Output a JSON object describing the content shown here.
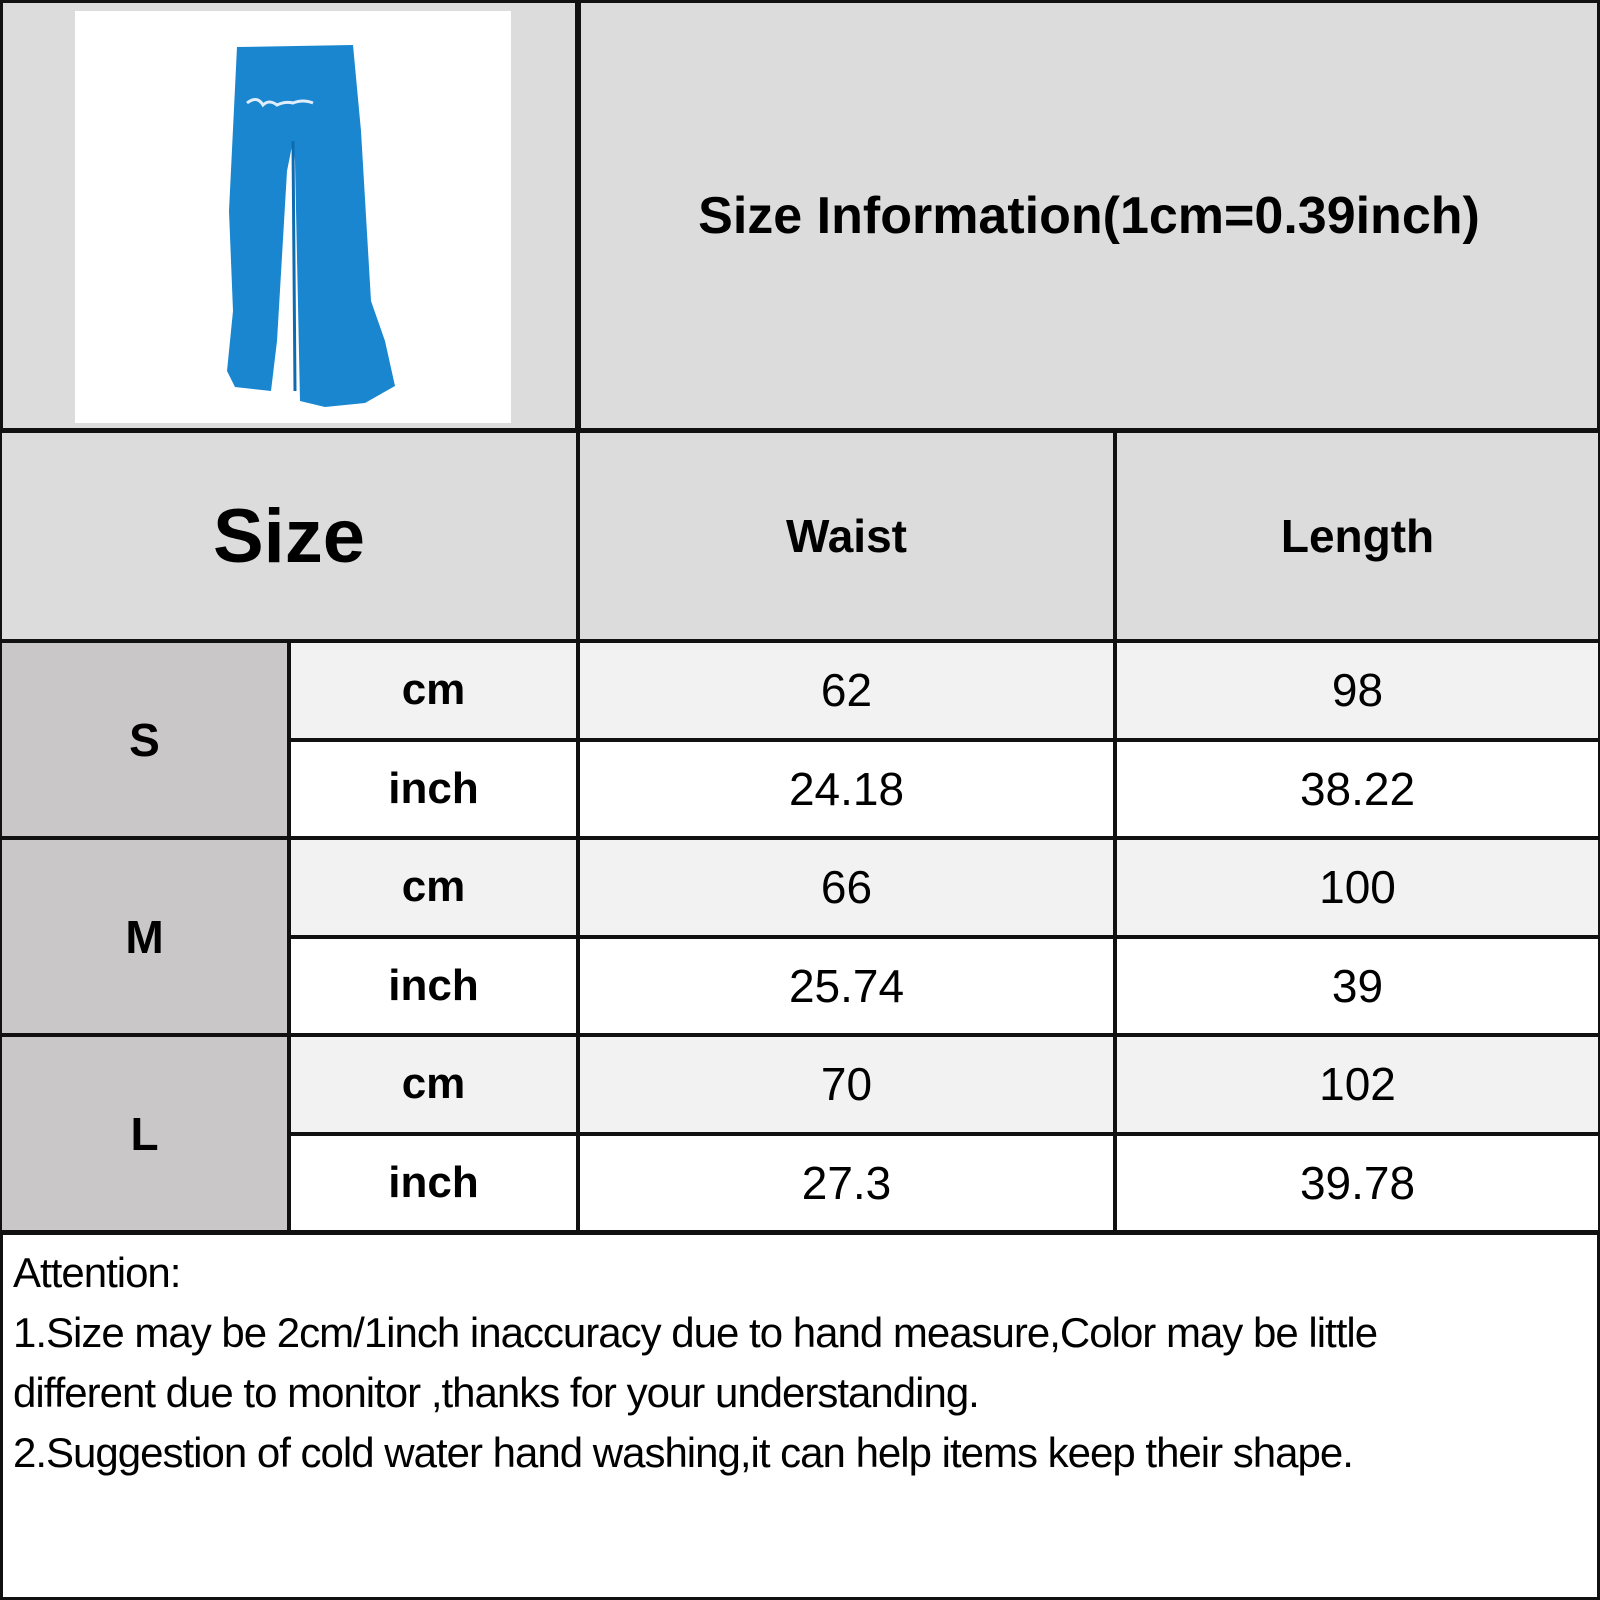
{
  "title": "Size Information(1cm=0.39inch)",
  "product_image": {
    "icon": "blue-wide-leg-pants",
    "color": "#1a86d0",
    "logo_text": "script logo"
  },
  "table": {
    "headers": {
      "size": "Size",
      "waist": "Waist",
      "length": "Length"
    },
    "rows": [
      {
        "size": "S",
        "cm": {
          "unit": "cm",
          "waist": "62",
          "length": "98"
        },
        "inch": {
          "unit": "inch",
          "waist": "24.18",
          "length": "38.22"
        }
      },
      {
        "size": "M",
        "cm": {
          "unit": "cm",
          "waist": "66",
          "length": "100"
        },
        "inch": {
          "unit": "inch",
          "waist": "25.74",
          "length": "39"
        }
      },
      {
        "size": "L",
        "cm": {
          "unit": "cm",
          "waist": "70",
          "length": "102"
        },
        "inch": {
          "unit": "inch",
          "waist": "27.3",
          "length": "39.78"
        }
      }
    ]
  },
  "attention": {
    "heading": "Attention:",
    "lines": [
      "1.Size may be 2cm/1inch inaccuracy due to hand measure,Color may be little",
      "different due to monitor ,thanks for your understanding.",
      "2.Suggestion of cold water hand washing,it can help items keep their shape."
    ]
  }
}
